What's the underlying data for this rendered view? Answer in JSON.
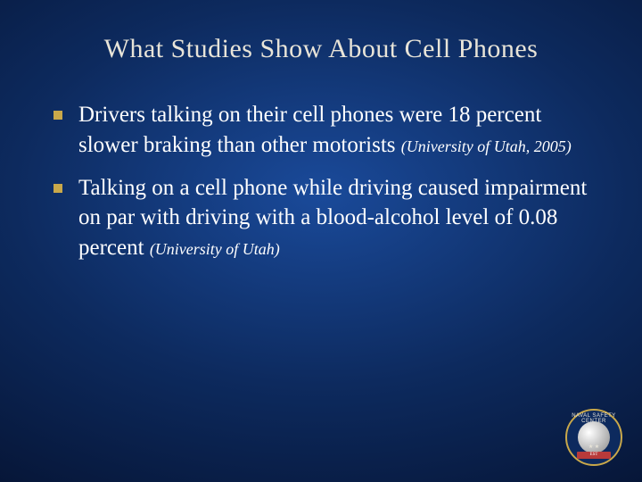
{
  "slide": {
    "title": "What Studies Show About Cell Phones",
    "title_color": "#e8e4d8",
    "title_fontsize": 30,
    "background_gradient": {
      "center": "#1a4a9a",
      "mid": "#0d2a5e",
      "outer": "#051230",
      "edge": "#020818"
    },
    "bullet_color": "#c9a84a",
    "text_color": "#ffffff",
    "body_fontsize": 25,
    "citation_fontsize": 18,
    "bullets": [
      {
        "text": "Drivers talking on their cell phones were 18 percent slower braking than other motorists ",
        "citation": "(University of Utah, 2005)"
      },
      {
        "text": "Talking on a cell phone while driving caused impairment on par with driving with a blood-alcohol level of 0.08 percent ",
        "citation": "(University of Utah)"
      }
    ],
    "logo": {
      "ring_text": "NAVAL SAFETY CENTER",
      "banner_text": "EST",
      "border_color": "#c9a84a",
      "ring_bg": "#0d2a5e",
      "banner_color": "#b83a3a"
    }
  }
}
